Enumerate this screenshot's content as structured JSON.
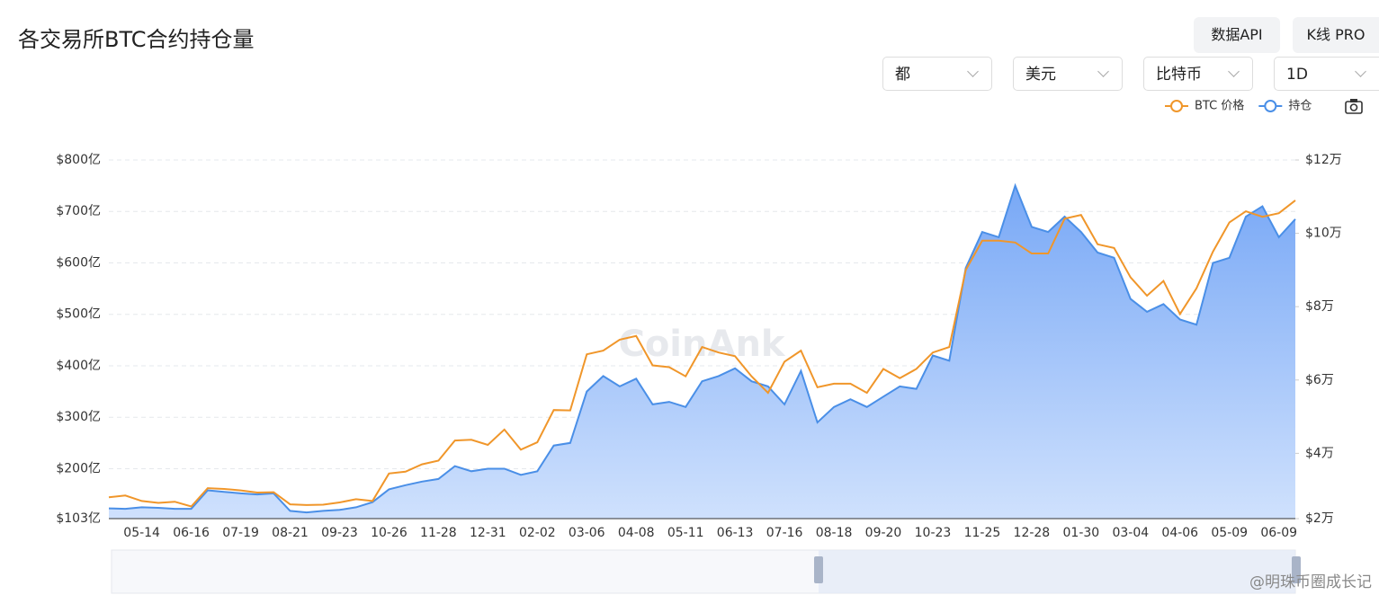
{
  "ui": {
    "buttons": [
      "数据API",
      "K线 PRO"
    ],
    "selects": [
      "都",
      "美元",
      "比特币",
      "1D"
    ],
    "watermark": "CoinAnk",
    "credit": "@明珠币圈成长记"
  },
  "chart_data": {
    "type": "area-line",
    "title": "各交易所BTC合约持仓量",
    "categories": [
      null,
      null,
      "05-14",
      null,
      null,
      "06-16",
      null,
      null,
      "07-19",
      null,
      null,
      "08-21",
      null,
      null,
      "09-23",
      null,
      null,
      "10-26",
      null,
      null,
      "11-28",
      null,
      null,
      "12-31",
      null,
      null,
      "02-02",
      null,
      null,
      "03-06",
      null,
      null,
      "04-08",
      null,
      null,
      "05-11",
      null,
      null,
      "06-13",
      null,
      null,
      "07-16",
      null,
      null,
      "08-18",
      null,
      null,
      "09-20",
      null,
      null,
      "10-23",
      null,
      null,
      "11-25",
      null,
      null,
      "12-28",
      null,
      null,
      "01-30",
      null,
      null,
      "03-04",
      null,
      null,
      "04-06",
      null,
      null,
      "05-09",
      null,
      null,
      "06-09",
      null
    ],
    "series": [
      {
        "name": "持仓",
        "color": "#4a8fe7",
        "values": [
          123,
          122,
          125,
          124,
          122,
          122,
          158,
          155,
          152,
          150,
          152,
          118,
          115,
          118,
          120,
          125,
          135,
          160,
          168,
          175,
          180,
          205,
          195,
          200,
          200,
          188,
          195,
          245,
          250,
          350,
          380,
          360,
          375,
          325,
          330,
          320,
          370,
          380,
          395,
          370,
          360,
          325,
          390,
          290,
          320,
          335,
          320,
          340,
          360,
          355,
          420,
          410,
          590,
          660,
          650,
          750,
          670,
          660,
          690,
          660,
          620,
          610,
          530,
          505,
          520,
          490,
          480,
          600,
          610,
          690,
          710,
          650,
          685
        ]
      },
      {
        "name": "BTC 价格",
        "color": "#f0962a",
        "axis": "y2",
        "values": [
          28000,
          28500,
          27000,
          26500,
          26800,
          25500,
          30500,
          30300,
          29900,
          29300,
          29400,
          26100,
          25900,
          26000,
          26600,
          27500,
          27000,
          34500,
          35000,
          37000,
          38000,
          43500,
          43700,
          42300,
          46500,
          41000,
          43000,
          51800,
          51700,
          67000,
          68000,
          71000,
          72000,
          64000,
          63500,
          61000,
          69000,
          67500,
          66500,
          61000,
          56500,
          65000,
          68000,
          58000,
          59000,
          59000,
          56500,
          63000,
          60500,
          63000,
          67500,
          69000,
          90000,
          98000,
          98000,
          97500,
          94500,
          94500,
          104000,
          105000,
          97000,
          96000,
          88000,
          83000,
          87000,
          78000,
          85000,
          95000,
          103000,
          106000,
          104500,
          105500,
          109000
        ]
      }
    ],
    "ylim": [
      103,
      800
    ],
    "yticks": [
      {
        "value": 103,
        "label": "$103亿"
      },
      {
        "value": 200,
        "label": "$200亿"
      },
      {
        "value": 300,
        "label": "$300亿"
      },
      {
        "value": 400,
        "label": "$400亿"
      },
      {
        "value": 500,
        "label": "$500亿"
      },
      {
        "value": 600,
        "label": "$600亿"
      },
      {
        "value": 700,
        "label": "$700亿"
      },
      {
        "value": 800,
        "label": "$800亿"
      }
    ],
    "y2lim": [
      22200,
      120000
    ],
    "y2ticks": [
      {
        "value": 22200,
        "label": "$2万"
      },
      {
        "value": 40000,
        "label": "$4万"
      },
      {
        "value": 60000,
        "label": "$6万"
      },
      {
        "value": 80000,
        "label": "$8万"
      },
      {
        "value": 100000,
        "label": "$10万"
      },
      {
        "value": 120000,
        "label": "$12万"
      }
    ],
    "grid": true,
    "legend": "top-right"
  }
}
